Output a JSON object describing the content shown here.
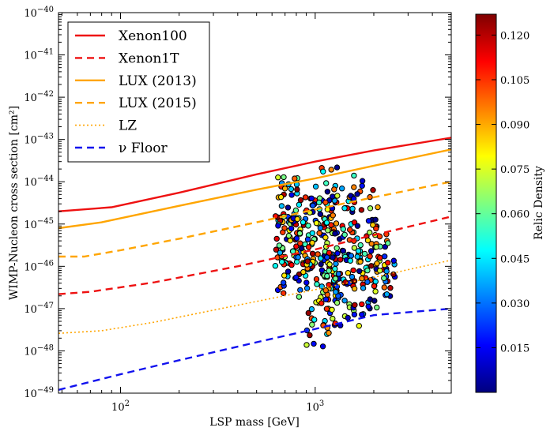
{
  "chart_data": {
    "type": "scatter",
    "xlabel": "LSP mass [GeV]",
    "ylabel": "WIMP-Nucleon cross section [cm²]",
    "xscale": "log",
    "yscale": "log",
    "xlim": [
      48,
      5000
    ],
    "ylim": [
      1e-49,
      1e-40
    ],
    "x_ticks": [
      {
        "value": 100,
        "base": "10",
        "exp": "2"
      },
      {
        "value": 1000,
        "base": "10",
        "exp": "3"
      }
    ],
    "y_ticks": [
      {
        "value": 1e-40,
        "base": "10",
        "exp": "−40"
      },
      {
        "value": 1e-41,
        "base": "10",
        "exp": "−41"
      },
      {
        "value": 1e-42,
        "base": "10",
        "exp": "−42"
      },
      {
        "value": 1e-43,
        "base": "10",
        "exp": "−43"
      },
      {
        "value": 1e-44,
        "base": "10",
        "exp": "−44"
      },
      {
        "value": 1e-45,
        "base": "10",
        "exp": "−45"
      },
      {
        "value": 1e-46,
        "base": "10",
        "exp": "−46"
      },
      {
        "value": 1e-47,
        "base": "10",
        "exp": "−47"
      },
      {
        "value": 1e-48,
        "base": "10",
        "exp": "−48"
      },
      {
        "value": 1e-49,
        "base": "10",
        "exp": "−49"
      }
    ],
    "legend_position": "top-left",
    "series": [
      {
        "name": "Xenon100",
        "color": "#ee1111",
        "style": "solid",
        "points": [
          [
            48,
            2e-45
          ],
          [
            90,
            2.5e-45
          ],
          [
            200,
            5.5e-45
          ],
          [
            500,
            1.5e-44
          ],
          [
            1000,
            3e-44
          ],
          [
            2000,
            5.5e-44
          ],
          [
            5000,
            1.1e-43
          ]
        ]
      },
      {
        "name": "Xenon1T",
        "color": "#ee1111",
        "style": "dashed",
        "points": [
          [
            48,
            2.2e-47
          ],
          [
            70,
            2.5e-47
          ],
          [
            150,
            4.2e-47
          ],
          [
            400,
            1e-46
          ],
          [
            1000,
            2.5e-46
          ],
          [
            2000,
            5.5e-46
          ],
          [
            5000,
            1.5e-45
          ]
        ]
      },
      {
        "name": "LUX (2013)",
        "color": "#ffa500",
        "style": "solid",
        "points": [
          [
            48,
            8e-46
          ],
          [
            80,
            1.1e-45
          ],
          [
            200,
            2.7e-45
          ],
          [
            500,
            6.5e-45
          ],
          [
            1000,
            1.2e-44
          ],
          [
            2000,
            2.4e-44
          ],
          [
            5000,
            5.8e-44
          ]
        ]
      },
      {
        "name": "LUX (2015)",
        "color": "#ffa500",
        "style": "dashed",
        "points": [
          [
            48,
            1.7e-46
          ],
          [
            65,
            1.7e-46
          ],
          [
            100,
            2.4e-46
          ],
          [
            200,
            4.5e-46
          ],
          [
            500,
            1.1e-45
          ],
          [
            1000,
            2.2e-45
          ],
          [
            2000,
            4.3e-45
          ],
          [
            5000,
            1e-44
          ]
        ]
      },
      {
        "name": "LZ",
        "color": "#ffa500",
        "style": "dotted",
        "points": [
          [
            48,
            2.6e-48
          ],
          [
            80,
            3e-48
          ],
          [
            150,
            4.8e-48
          ],
          [
            400,
            1.2e-47
          ],
          [
            1000,
            2.8e-47
          ],
          [
            2000,
            5.5e-47
          ],
          [
            5000,
            1.4e-46
          ]
        ]
      },
      {
        "name": "ν Floor",
        "color": "#1111ee",
        "style": "dashed",
        "points": [
          [
            48,
            1.2e-49
          ],
          [
            100,
            2.8e-49
          ],
          [
            200,
            6e-49
          ],
          [
            500,
            1.6e-48
          ],
          [
            1000,
            3.3e-48
          ],
          [
            2000,
            7e-48
          ],
          [
            5000,
            1e-47
          ]
        ]
      }
    ],
    "scatter_clusters": [
      {
        "xmin": 620,
        "xmax": 900,
        "ymin": 1e-47,
        "ymax": 3e-44,
        "n": 120
      },
      {
        "xmin": 900,
        "xmax": 1300,
        "ymin": 6e-49,
        "ymax": 4e-44,
        "n": 140
      },
      {
        "xmin": 1100,
        "xmax": 1600,
        "ymin": 2e-48,
        "ymax": 3e-44,
        "n": 90
      },
      {
        "xmin": 1500,
        "xmax": 2100,
        "ymin": 2e-48,
        "ymax": 2.5e-44,
        "n": 80
      },
      {
        "xmin": 2000,
        "xmax": 2600,
        "ymin": 8e-48,
        "ymax": 8e-46,
        "n": 35
      }
    ],
    "colorbar": {
      "label": "Relic Density",
      "min": 0.0,
      "max": 0.127,
      "ticks": [
        "0.015",
        "0.030",
        "0.045",
        "0.060",
        "0.075",
        "0.090",
        "0.105",
        "0.120"
      ],
      "colormap": "jet"
    }
  }
}
